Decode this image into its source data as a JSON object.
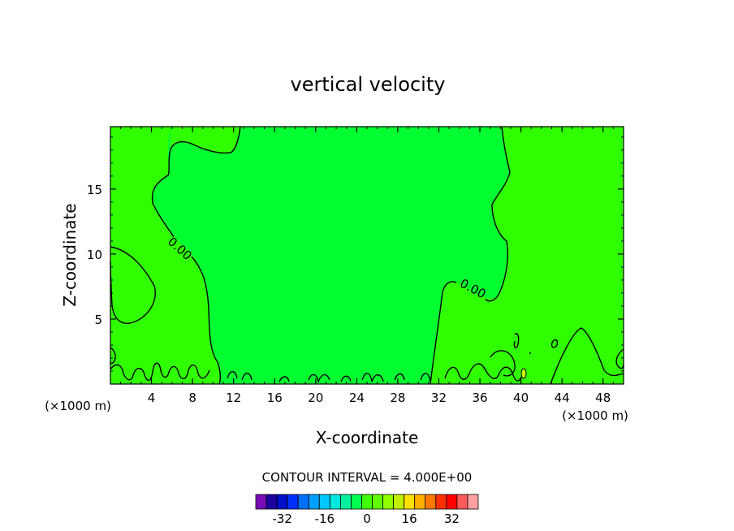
{
  "chart_data": {
    "type": "contour",
    "title": "vertical velocity",
    "xlabel": "X-coordinate",
    "ylabel": "Z-coordinate",
    "x_unit": "(×1000 m)",
    "z_unit": "(×1000 m)",
    "xlim": [
      0,
      50
    ],
    "ylim": [
      0,
      19.8
    ],
    "xticks": [
      4,
      8,
      12,
      16,
      20,
      24,
      28,
      32,
      36,
      40,
      44,
      48
    ],
    "yticks": [
      5,
      10,
      15
    ],
    "contour_labels": [
      {
        "text": "0.00",
        "x": 6.5,
        "z": 10.2
      },
      {
        "text": "0.00",
        "x": 34.8,
        "z": 7.3
      }
    ],
    "contour_interval_text": "CONTOUR INTERVAL = 4.000E+00",
    "colorbar": {
      "levels": [
        -36,
        -32,
        -28,
        -24,
        -20,
        -16,
        -12,
        -8,
        -4,
        0,
        4,
        8,
        12,
        16,
        20,
        24,
        28,
        32,
        36
      ],
      "tick_labels": [
        "-32",
        "-16",
        "0",
        "16",
        "32"
      ],
      "tick_values": [
        -32,
        -16,
        0,
        16,
        32
      ],
      "colors": [
        "#7a0cb8",
        "#1c00a0",
        "#0010c8",
        "#0030ff",
        "#0070ff",
        "#00a0ff",
        "#00c8ff",
        "#00e8e0",
        "#00f0a0",
        "#00ff50",
        "#40ff00",
        "#60ff00",
        "#90ff00",
        "#c0f000",
        "#ffe000",
        "#ffb000",
        "#ff7800",
        "#ff3000",
        "#ff0000",
        "#ff5a5a",
        "#ffa0a0"
      ]
    },
    "fills": {
      "negative": "#00ff30",
      "positive": "#30ff00",
      "small_positive_spot": "#c8ff00"
    }
  }
}
